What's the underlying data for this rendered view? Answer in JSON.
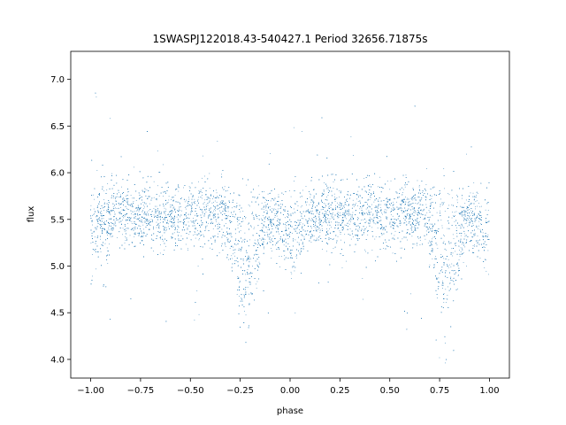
{
  "chart_data": {
    "type": "scatter",
    "title": "1SWASPJ122018.43-540427.1 Period 32656.71875s",
    "xlabel": "phase",
    "ylabel": "flux",
    "xlim": [
      -1.1,
      1.1
    ],
    "ylim": [
      3.8,
      7.3
    ],
    "xticks": [
      -1.0,
      -0.75,
      -0.5,
      -0.25,
      0.0,
      0.25,
      0.5,
      0.75,
      1.0
    ],
    "xtick_labels": [
      "−1.00",
      "−0.75",
      "−0.50",
      "−0.25",
      "0.00",
      "0.25",
      "0.50",
      "0.75",
      "1.00"
    ],
    "yticks": [
      4.0,
      4.5,
      5.0,
      5.5,
      6.0,
      6.5,
      7.0
    ],
    "ytick_labels": [
      "4.0",
      "4.5",
      "5.0",
      "5.5",
      "6.0",
      "6.5",
      "7.0"
    ],
    "grid": false,
    "marker_color": "#1f77b4",
    "series": [
      {
        "baseline_flux": 5.55,
        "scatter_sigma": 0.17,
        "x_range": [
          -1.0,
          1.0
        ],
        "eclipses": [
          {
            "center_phase": -0.22,
            "min_flux": 4.55
          },
          {
            "center_phase": 0.78,
            "min_flux": 4.55
          },
          {
            "center_phase": 0.0,
            "min_flux": 5.2
          },
          {
            "center_phase": -1.0,
            "min_flux": 5.2
          },
          {
            "center_phase": 1.0,
            "min_flux": 5.2
          }
        ]
      }
    ]
  }
}
